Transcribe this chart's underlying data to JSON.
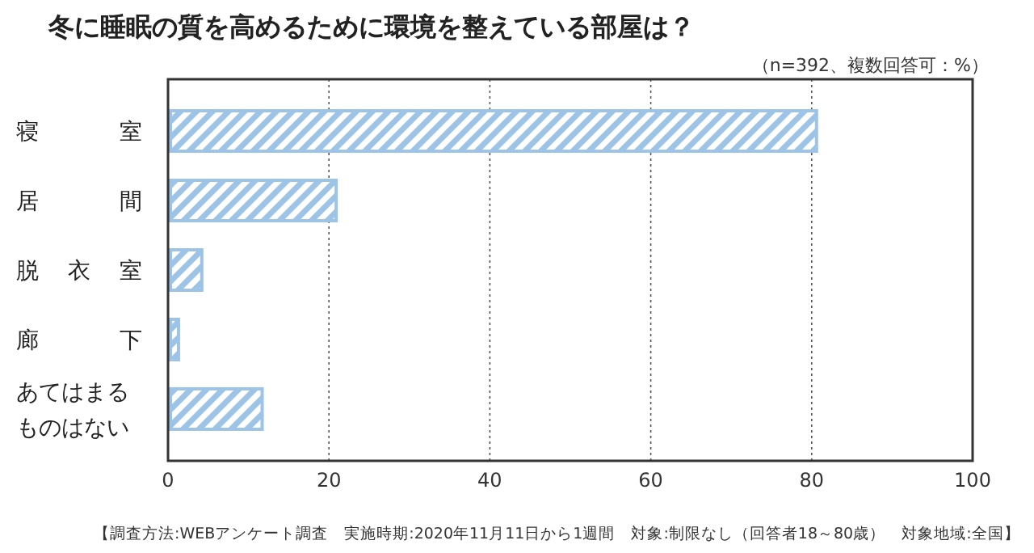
{
  "chart_data": {
    "type": "bar",
    "orientation": "horizontal",
    "title": "冬に睡眠の質を高めるために環境を整えている部屋は？",
    "categories": [
      "寝室",
      "居間",
      "脱衣室",
      "廊下",
      "あてはまるものはない"
    ],
    "values": [
      80.6,
      20.9,
      4.2,
      1.3,
      11.7
    ],
    "color": "#9dc3e6",
    "xlim": [
      0,
      100
    ],
    "xticks": [
      0,
      20,
      40,
      60,
      80,
      100
    ],
    "grid": "x",
    "annotations": [
      "（n=392、複数回答可：%）",
      "【調査方法:WEBアンケート調査　実施時期:2020年11月11日から1週間　対象:制限なし（回答者18～80歳）　対象地域:全国】"
    ]
  }
}
